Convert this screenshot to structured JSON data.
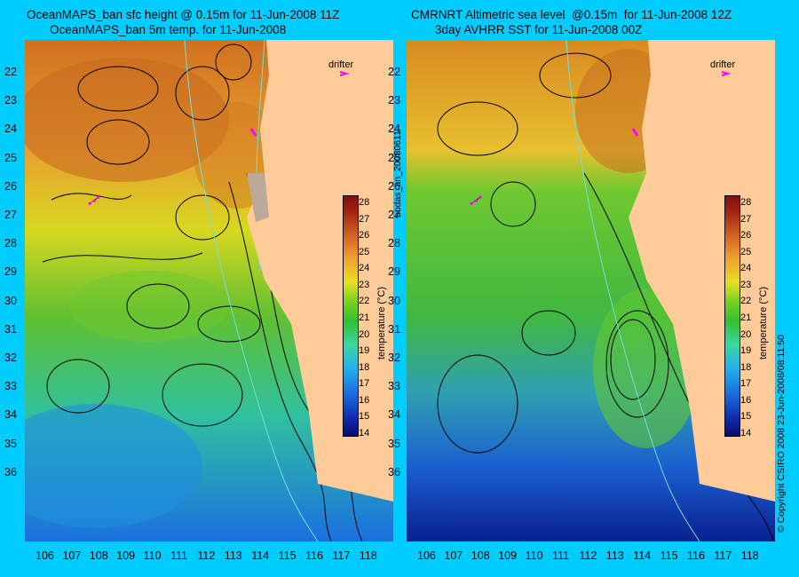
{
  "left_panel": {
    "title_line1": "OceanMAPS_ban sfc height @ 0.15m for 11-Jun-2008 11Z",
    "title_line2": "OceanMAPS_ban 5m temp. for 11-Jun-2008",
    "drifter_label": "drifter"
  },
  "right_panel": {
    "title_line1": "CMRNRT Altimetric sea level  @0.15m  for 11-Jun-2008 12Z",
    "title_line2": "3day AVHRR SST for 11-Jun-2008 00Z",
    "drifter_label": "drifter"
  },
  "side_label_left": "bodas_an_20080611",
  "side_label_right": "© Copyright CSIRO 2008   23-Jun-2008/08:11:50",
  "colorbar": {
    "title": "temperature (°C)",
    "ticks": [
      "28",
      "27",
      "26",
      "25",
      "24",
      "23",
      "22",
      "21",
      "20",
      "19",
      "18",
      "17",
      "16",
      "15",
      "14"
    ]
  },
  "lat_ticks": [
    "22",
    "23",
    "24",
    "25",
    "26",
    "27",
    "28",
    "29",
    "30",
    "31",
    "32",
    "33",
    "34",
    "35",
    "36"
  ],
  "lon_ticks": [
    "106",
    "107",
    "108",
    "109",
    "110",
    "111",
    "112",
    "113",
    "114",
    "115",
    "116",
    "117",
    "118"
  ],
  "colors": {
    "background": "#00ccff",
    "land": "#ffcc99",
    "drifter": "#ff00ff"
  }
}
